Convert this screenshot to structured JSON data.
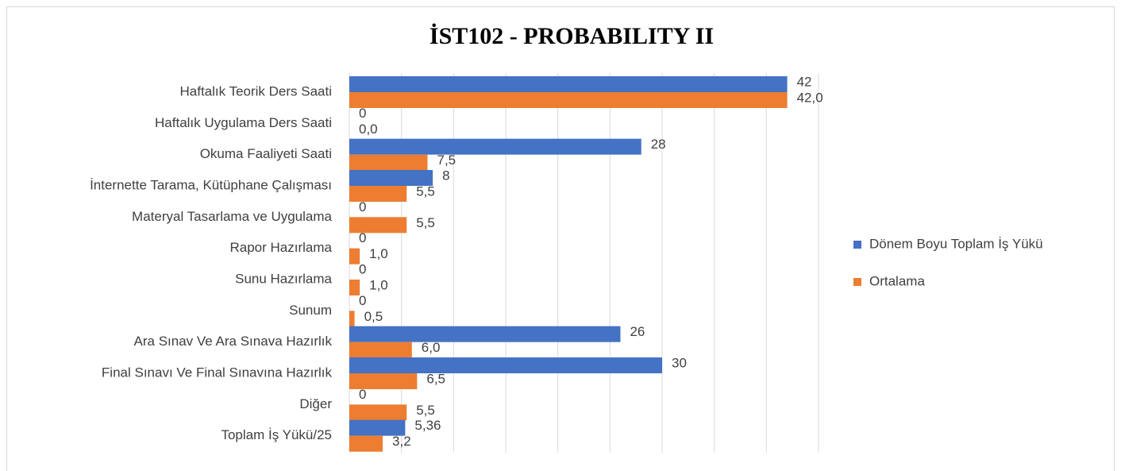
{
  "chart_data": {
    "type": "barh",
    "title": "İST102 - PROBABILITY II",
    "categories": [
      "Haftalık Teorik Ders Saati",
      "Haftalık Uygulama Ders Saati",
      "Okuma Faaliyeti Saati",
      "İnternette Tarama, Kütüphane Çalışması",
      "Materyal Tasarlama ve Uygulama",
      "Rapor Hazırlama",
      "Sunu Hazırlama",
      "Sunum",
      "Ara Sınav Ve Ara Sınava Hazırlık",
      "Final Sınavı Ve Final Sınavına Hazırlık",
      "Diğer",
      "Toplam İş Yükü/25"
    ],
    "series": [
      {
        "name": "Dönem Boyu Toplam İş Yükü",
        "color": "#4472c4",
        "values": [
          42,
          0,
          28,
          8,
          0,
          0,
          0,
          0,
          26,
          30,
          0,
          5.36
        ],
        "value_labels": [
          "42",
          "0",
          "28",
          "8",
          "0",
          "0",
          "0",
          "0",
          "26",
          "30",
          "0",
          "5,36"
        ]
      },
      {
        "name": "Ortalama",
        "color": "#ed7d31",
        "values": [
          42.0,
          0.0,
          7.5,
          5.5,
          5.5,
          1.0,
          1.0,
          0.5,
          6.0,
          6.5,
          5.5,
          3.2
        ],
        "value_labels": [
          "42,0",
          "0,0",
          "7,5",
          "5,5",
          "5,5",
          "1,0",
          "1,0",
          "0,5",
          "6,0",
          "6,5",
          "5,5",
          "3,2"
        ]
      }
    ],
    "xlim": [
      0,
      45
    ],
    "xticks": [
      0,
      5,
      10,
      15,
      20,
      25,
      30,
      35,
      40,
      45
    ],
    "grid": true,
    "legend": "right"
  }
}
